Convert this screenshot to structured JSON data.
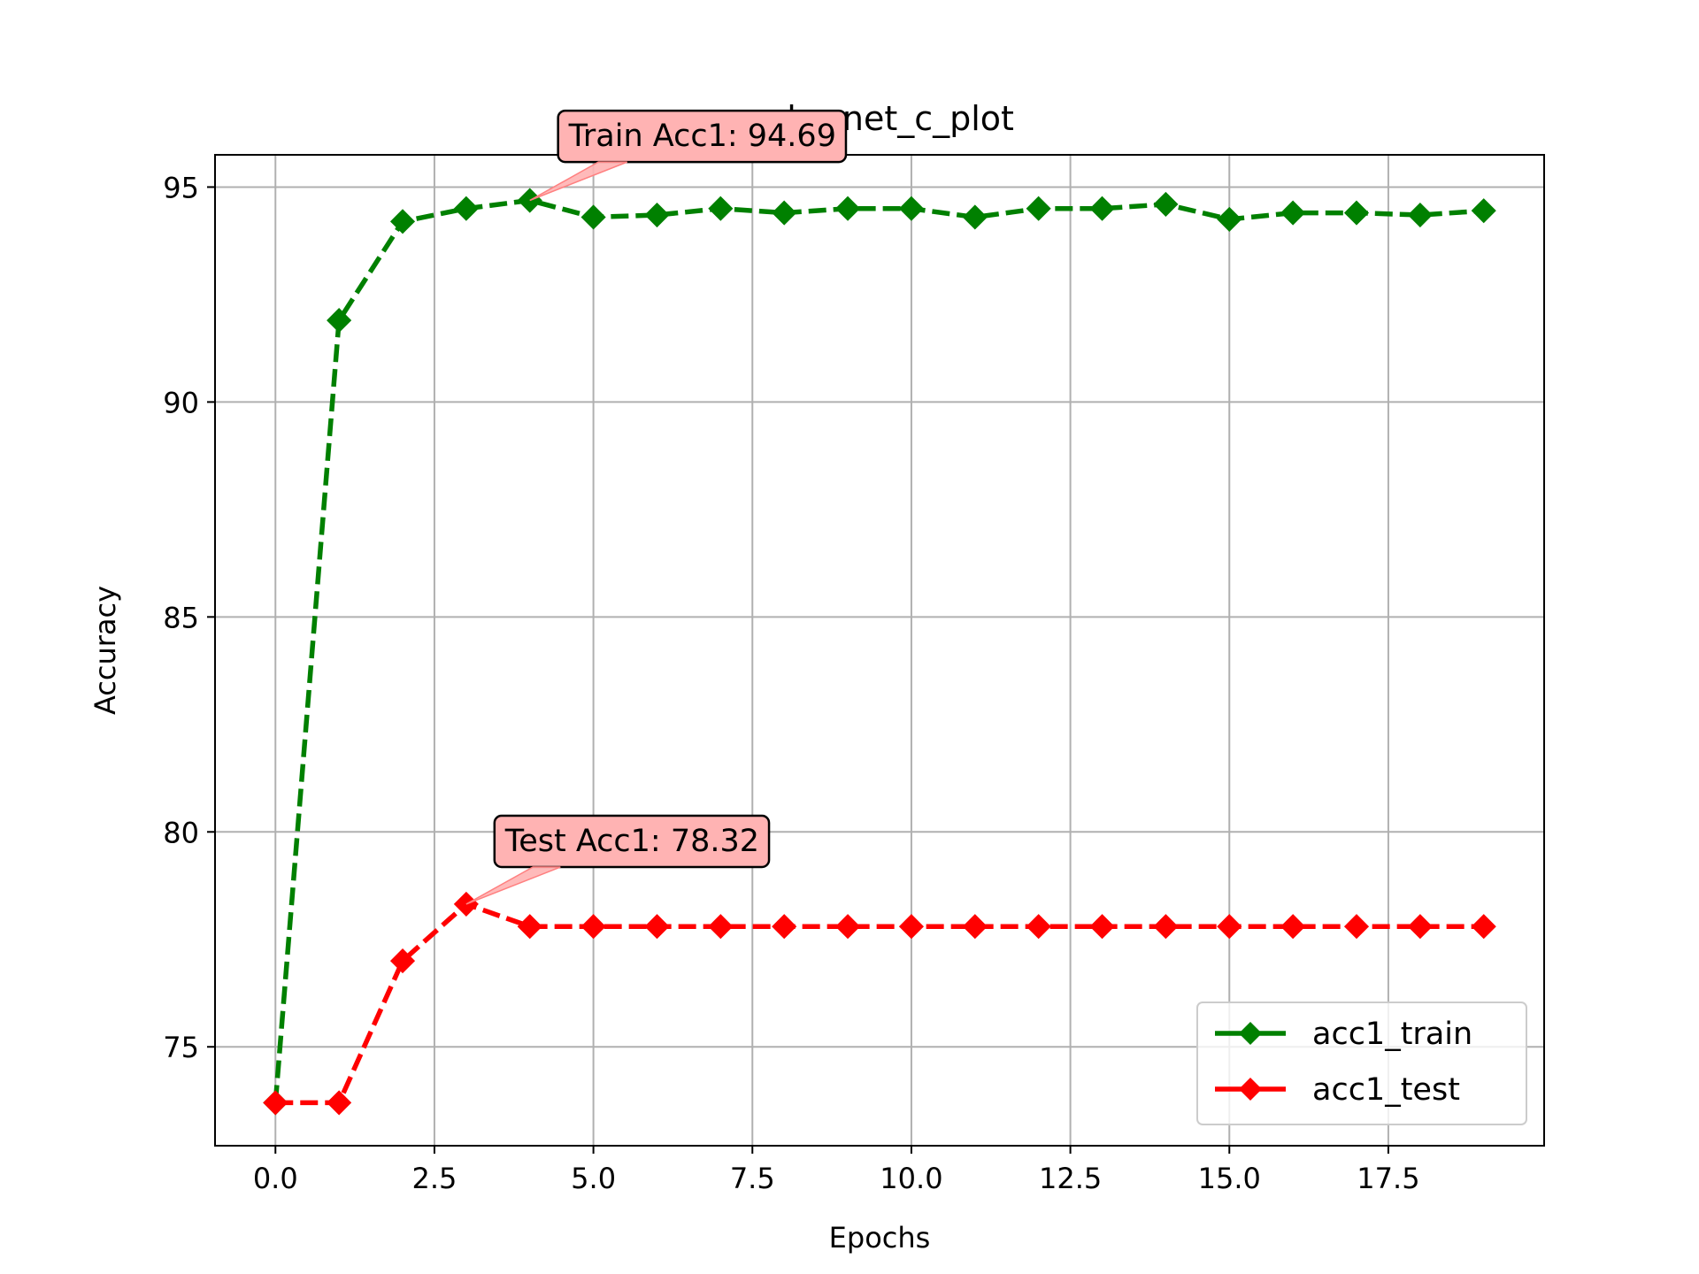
{
  "chart_data": {
    "type": "line",
    "title": "nabernet_c_plot",
    "xlabel": "Epochs",
    "ylabel": "Accuracy",
    "xlim": [
      -0.95,
      19.95
    ],
    "ylim": [
      72.7,
      95.75
    ],
    "x_ticks": [
      0.0,
      2.5,
      5.0,
      7.5,
      10.0,
      12.5,
      15.0,
      17.5
    ],
    "x_tick_labels": [
      "0.0",
      "2.5",
      "5.0",
      "7.5",
      "10.0",
      "12.5",
      "15.0",
      "17.5"
    ],
    "y_ticks": [
      75,
      80,
      85,
      90,
      95
    ],
    "y_tick_labels": [
      "75",
      "80",
      "85",
      "90",
      "95"
    ],
    "grid": true,
    "legend_position": "lower-right",
    "x": [
      0,
      1,
      2,
      3,
      4,
      5,
      6,
      7,
      8,
      9,
      10,
      11,
      12,
      13,
      14,
      15,
      16,
      17,
      18,
      19
    ],
    "series": [
      {
        "name": "acc1_train",
        "color": "#008000",
        "marker": "diamond",
        "line_style": "dashed",
        "values": [
          73.7,
          91.9,
          94.2,
          94.5,
          94.69,
          94.3,
          94.35,
          94.5,
          94.4,
          94.5,
          94.5,
          94.3,
          94.5,
          94.5,
          94.6,
          94.25,
          94.4,
          94.4,
          94.35,
          94.45
        ]
      },
      {
        "name": "acc1_test",
        "color": "#ff0000",
        "marker": "diamond",
        "line_style": "dashed",
        "values": [
          73.7,
          73.7,
          77.0,
          78.32,
          77.8,
          77.8,
          77.8,
          77.8,
          77.8,
          77.8,
          77.8,
          77.8,
          77.8,
          77.8,
          77.8,
          77.8,
          77.8,
          77.8,
          77.8,
          77.8
        ]
      }
    ],
    "annotations": [
      {
        "text": "Train Acc1: 94.69",
        "x": 4,
        "y": 94.69,
        "text_x": 4.5,
        "text_y": 96.2,
        "box_color": "#ffb3b3"
      },
      {
        "text": "Test Acc1: 78.32",
        "x": 3,
        "y": 78.32,
        "text_x": 3.5,
        "text_y": 79.8,
        "box_color": "#ffb3b3"
      }
    ]
  }
}
